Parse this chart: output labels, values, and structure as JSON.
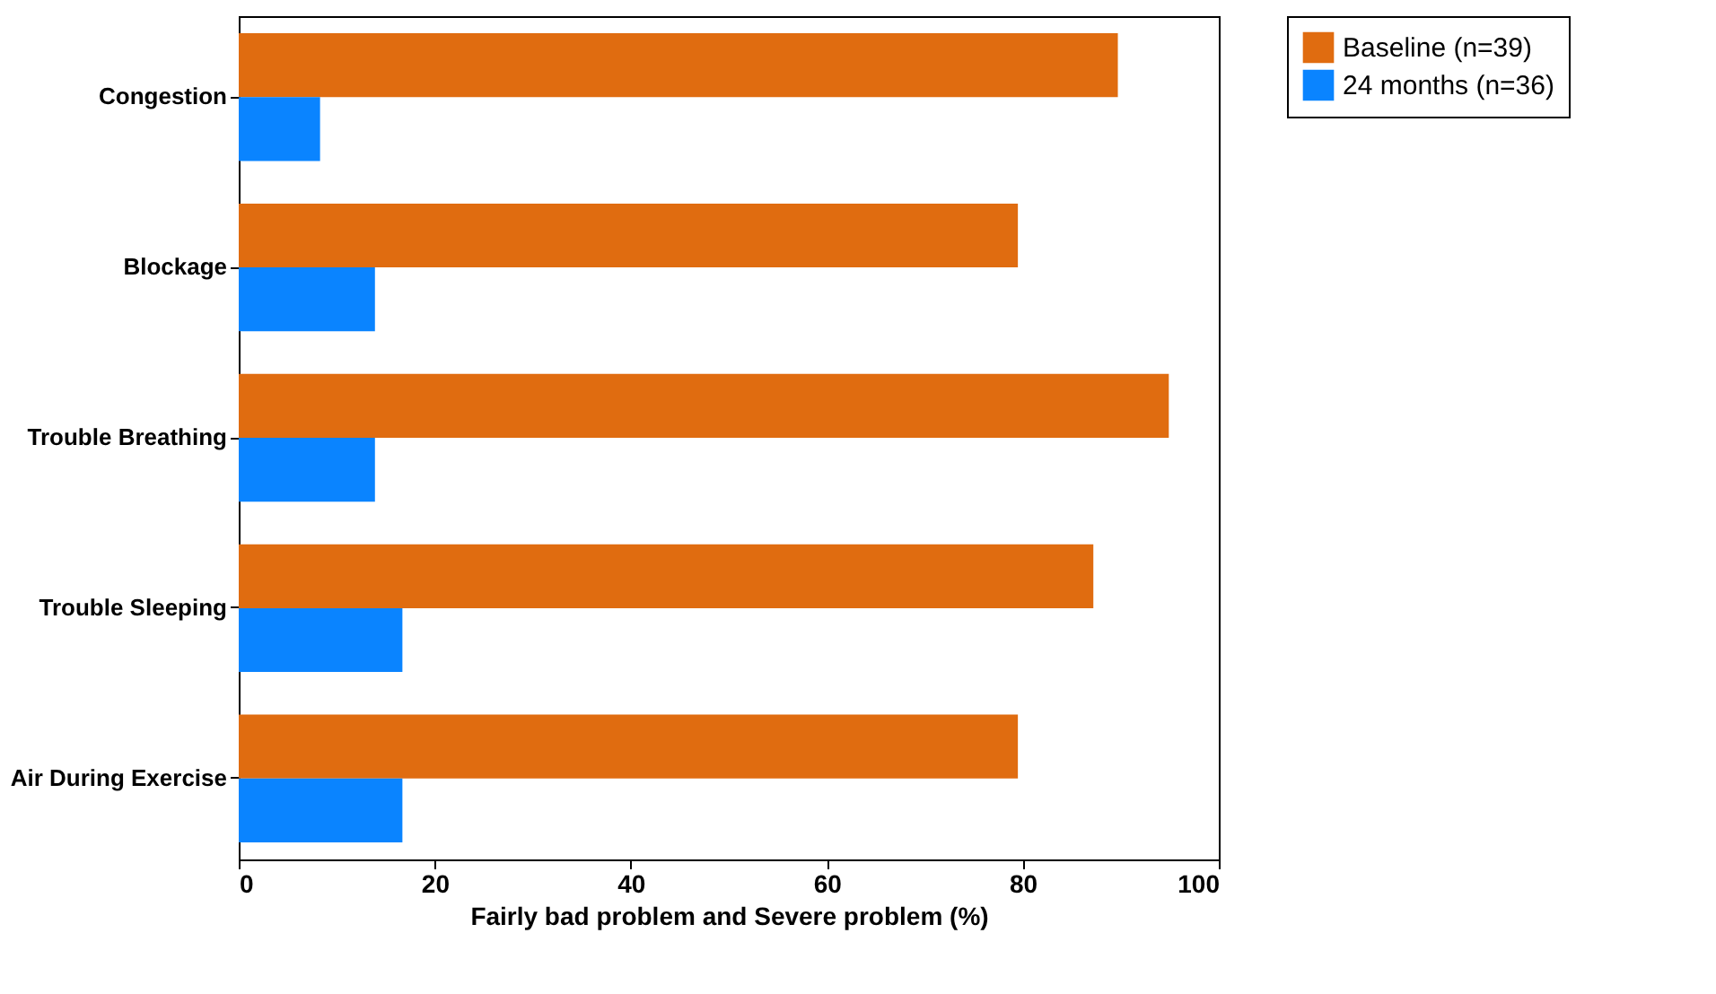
{
  "chart_data": {
    "type": "bar",
    "orientation": "horizontal",
    "categories": [
      "Congestion",
      "Blockage",
      "Trouble Breathing",
      "Trouble Sleeping",
      "Air During Exercise"
    ],
    "series": [
      {
        "name": "Baseline (n=39)",
        "color": "#e06c10",
        "values": [
          89.7,
          79.5,
          94.9,
          87.2,
          79.5
        ]
      },
      {
        "name": "24 months (n=36)",
        "color": "#0a84ff",
        "values": [
          8.3,
          13.9,
          13.9,
          16.7,
          16.7
        ]
      }
    ],
    "xlabel": "Fairly bad problem and Severe problem (%)",
    "xlim": [
      0,
      100
    ],
    "xticks": [
      0,
      20,
      40,
      60,
      80,
      100
    ],
    "grid": false,
    "legend": "top right"
  }
}
